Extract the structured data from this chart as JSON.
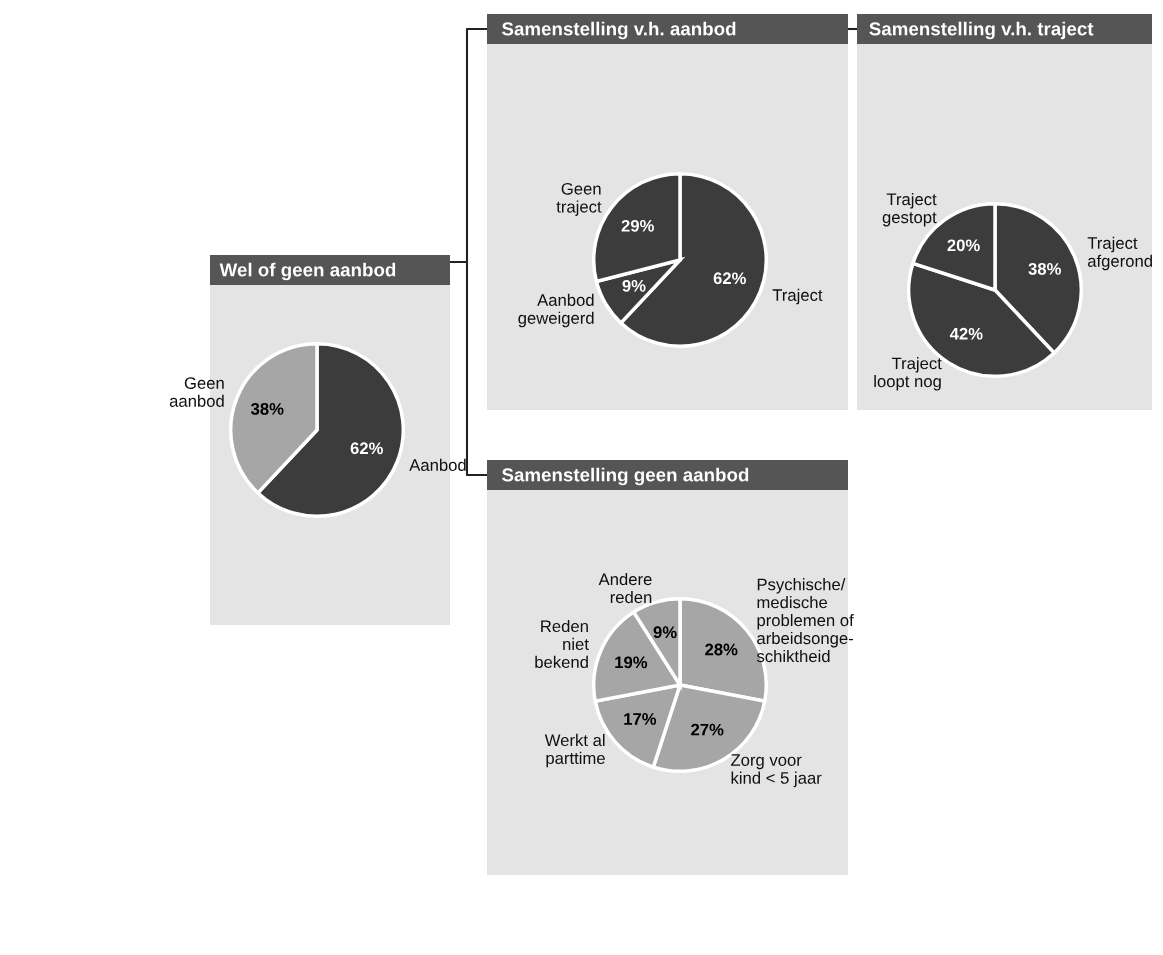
{
  "chart_data": [
    {
      "type": "pie",
      "title": "Wel of geen aanbod",
      "categories": [
        "Aanbod",
        "Geen\naanbod"
      ],
      "values": [
        62,
        38
      ],
      "colors": [
        "#3c3c3c",
        "#a6a6a6"
      ],
      "value_labels": [
        "62%",
        "38%"
      ]
    },
    {
      "type": "pie",
      "title": "Samenstelling v.h. aanbod",
      "categories": [
        "Traject",
        "Aanbod\ngeweigerd",
        "Geen\ntraject"
      ],
      "values": [
        62,
        9,
        29
      ],
      "colors": [
        "#3c3c3c",
        "#3c3c3c",
        "#3c3c3c"
      ],
      "value_labels": [
        "62%",
        "9%",
        "29%"
      ]
    },
    {
      "type": "pie",
      "title": "Samenstelling v.h. traject",
      "categories": [
        "Traject\nafgerond",
        "Traject\nloopt nog",
        "Traject\ngestopt"
      ],
      "values": [
        38,
        42,
        20
      ],
      "colors": [
        "#3c3c3c",
        "#3c3c3c",
        "#3c3c3c"
      ],
      "value_labels": [
        "38%",
        "42%",
        "20%"
      ]
    },
    {
      "type": "pie",
      "title": "Samenstelling geen aanbod",
      "categories": [
        "Psychische/\nmedische\nproblemen of\narbeidsonge-\nschiktheid",
        "Zorg voor\nkind < 5 jaar",
        "Werkt al\nparttime",
        "Reden\nniet\nbekend",
        "Andere\nreden"
      ],
      "values": [
        28,
        27,
        17,
        19,
        9
      ],
      "colors": [
        "#a6a6a6",
        "#a6a6a6",
        "#a6a6a6",
        "#a6a6a6",
        "#a6a6a6"
      ],
      "value_labels": [
        "28%",
        "27%",
        "17%",
        "19%",
        "9%"
      ]
    }
  ]
}
